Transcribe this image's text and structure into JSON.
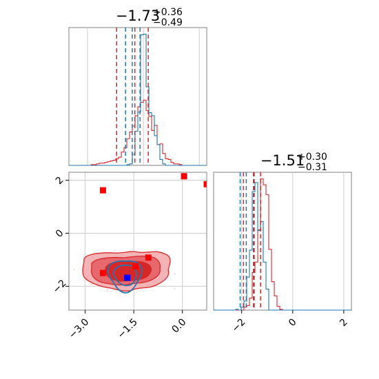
{
  "chart_data": {
    "type": "corner",
    "colors": {
      "red": "#d62728",
      "blue": "#1f77b4",
      "fill_red_light": "#f4b4b6",
      "fill_red_mid": "#e8696d",
      "marker_red": "#ff0000",
      "marker_blue": "#0000ff",
      "grid": "#cccccc",
      "axis": "#808080"
    },
    "params": [
      {
        "title_value": "−1.73",
        "title_plus": "+0.36",
        "title_minus": "−0.49",
        "quantile_lines": {
          "red": [
            -2.22,
            -1.73,
            -1.37
          ],
          "blue": [
            -1.98,
            -1.8,
            -1.59
          ]
        },
        "hist_range": [
          -3.5,
          0.2
        ],
        "red_hist": [
          0,
          0,
          0,
          0,
          0,
          0,
          0,
          0,
          1,
          1,
          2,
          3,
          3,
          4,
          5,
          6,
          7,
          9,
          11,
          18,
          24,
          36,
          45,
          53,
          67,
          79,
          85,
          88,
          74,
          66,
          47,
          54,
          28,
          29,
          16,
          9,
          8,
          4,
          2,
          2,
          1,
          0,
          0,
          0,
          0,
          0,
          0,
          0,
          0,
          0
        ],
        "blue_hist": [
          0,
          0,
          0,
          0,
          0,
          0,
          0,
          0,
          0,
          0,
          0,
          0,
          0,
          0,
          0,
          0,
          0,
          0,
          0,
          0,
          0,
          1,
          2,
          15,
          46,
          72,
          176,
          177,
          106,
          71,
          67,
          40,
          28,
          8,
          2,
          0,
          0,
          0,
          0,
          0,
          0,
          0,
          0,
          0,
          0,
          0,
          0,
          0,
          0,
          0
        ]
      },
      {
        "title_value": "−1.51",
        "title_plus": "+0.30",
        "title_minus": "−0.31",
        "quantile_lines": {
          "red": [
            -1.93,
            -1.51,
            -1.26
          ],
          "blue": [
            -2.06,
            -1.82,
            -1.54
          ]
        },
        "hist_range": [
          -3.1,
          2.3
        ],
        "red_hist": [
          0,
          0,
          0,
          0,
          0,
          0,
          0,
          0,
          0,
          0,
          0,
          4,
          6,
          16,
          50,
          64,
          107,
          175,
          167,
          154,
          81,
          38,
          19,
          5,
          1,
          0,
          0,
          0,
          0,
          0,
          0,
          0,
          0,
          0,
          0,
          0,
          0,
          0,
          0,
          0,
          0,
          0,
          0,
          0,
          0,
          0,
          0,
          0,
          0,
          0
        ],
        "blue_hist": [
          0,
          0,
          0,
          0,
          0,
          0,
          0,
          0,
          1,
          0,
          4,
          12,
          44,
          80,
          158,
          170,
          106,
          118,
          64,
          28,
          0,
          0,
          0,
          0,
          0,
          0,
          0,
          0,
          0,
          0,
          0,
          0,
          0,
          0,
          0,
          0,
          0,
          0,
          0,
          0,
          0,
          0,
          0,
          0,
          0,
          0,
          0,
          0,
          0,
          0
        ]
      }
    ],
    "scatter": {
      "xlim": [
        -3.5,
        0.75
      ],
      "ylim": [
        -2.9,
        2.3
      ],
      "red_squares": [
        [
          -2.45,
          1.62
        ],
        [
          0.05,
          2.15
        ],
        [
          0.75,
          1.85
        ],
        [
          -2.45,
          -1.5
        ],
        [
          -1.45,
          -1.25
        ],
        [
          -1.05,
          -0.92
        ]
      ],
      "blue_square": [
        -1.7,
        -1.68
      ]
    },
    "x_ticks_p1": [
      {
        "v": -3.0,
        "label": "−3.0"
      },
      {
        "v": -1.5,
        "label": "−1.5"
      },
      {
        "v": 0.0,
        "label": "0.0"
      }
    ],
    "x_ticks_p2": [
      {
        "v": -2,
        "label": "−2"
      },
      {
        "v": 0,
        "label": "0"
      },
      {
        "v": 2,
        "label": "2"
      }
    ],
    "y_ticks_p2": [
      {
        "v": 2,
        "label": "2"
      },
      {
        "v": 0,
        "label": "0"
      },
      {
        "v": -2,
        "label": "−2"
      }
    ]
  }
}
